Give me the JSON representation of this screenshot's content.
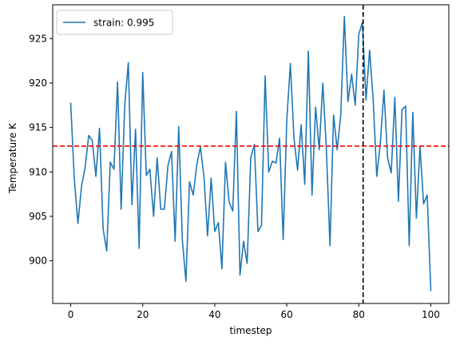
{
  "chart_data": {
    "type": "line",
    "xlabel": "timestep",
    "ylabel": "Temperature K",
    "xlim": [
      -5,
      105
    ],
    "ylim": [
      895.2,
      928.8
    ],
    "xticks": [
      0,
      20,
      40,
      60,
      80,
      100
    ],
    "yticks": [
      900,
      905,
      910,
      915,
      920,
      925
    ],
    "grid": false,
    "legend_position": "top-left",
    "series": [
      {
        "name": "strain: 0.995",
        "color": "#1f77b4",
        "x": [
          0,
          1,
          2,
          3,
          4,
          5,
          6,
          7,
          8,
          9,
          10,
          11,
          12,
          13,
          14,
          15,
          16,
          17,
          18,
          19,
          20,
          21,
          22,
          23,
          24,
          25,
          26,
          27,
          28,
          29,
          30,
          31,
          32,
          33,
          34,
          35,
          36,
          37,
          38,
          39,
          40,
          41,
          42,
          43,
          44,
          45,
          46,
          47,
          48,
          49,
          50,
          51,
          52,
          53,
          54,
          55,
          56,
          57,
          58,
          59,
          60,
          61,
          62,
          63,
          64,
          65,
          66,
          67,
          68,
          69,
          70,
          71,
          72,
          73,
          74,
          75,
          76,
          77,
          78,
          79,
          80,
          81,
          82,
          83,
          84,
          85,
          86,
          87,
          88,
          89,
          90,
          91,
          92,
          93,
          94,
          95,
          96,
          97,
          98,
          99,
          100
        ],
        "y": [
          917.8,
          909.1,
          904.2,
          908.4,
          910.5,
          914.1,
          913.5,
          909.5,
          914.9,
          903.6,
          901.1,
          911.1,
          910.3,
          920.1,
          905.8,
          917.5,
          922.3,
          906.3,
          914.8,
          901.4,
          921.2,
          909.6,
          910.3,
          905.0,
          911.6,
          905.8,
          905.8,
          910.7,
          912.3,
          902.2,
          915.1,
          902.4,
          897.7,
          908.9,
          907.4,
          910.8,
          912.8,
          909.5,
          902.8,
          909.3,
          903.3,
          904.3,
          899.1,
          911.1,
          906.6,
          905.6,
          916.8,
          898.4,
          902.2,
          899.7,
          911.6,
          913.1,
          903.3,
          904.0,
          920.8,
          910.0,
          911.2,
          911.0,
          913.8,
          902.4,
          915.8,
          922.2,
          913.8,
          910.2,
          915.3,
          908.6,
          923.6,
          907.4,
          917.3,
          912.5,
          920.0,
          912.5,
          901.7,
          916.4,
          912.5,
          916.4,
          927.5,
          917.9,
          921.0,
          917.5,
          925.5,
          926.8,
          918.1,
          923.7,
          918.1,
          909.5,
          913.3,
          919.2,
          911.6,
          909.9,
          918.4,
          906.7,
          917.0,
          917.4,
          901.7,
          916.7,
          904.8,
          912.9,
          906.4,
          907.4,
          896.6
        ]
      }
    ],
    "reference_lines": [
      {
        "orientation": "horizontal",
        "value": 912.9,
        "color": "#ff0000",
        "style": "dashed"
      },
      {
        "orientation": "vertical",
        "value": 81.2,
        "color": "#000000",
        "style": "dashed"
      }
    ]
  }
}
